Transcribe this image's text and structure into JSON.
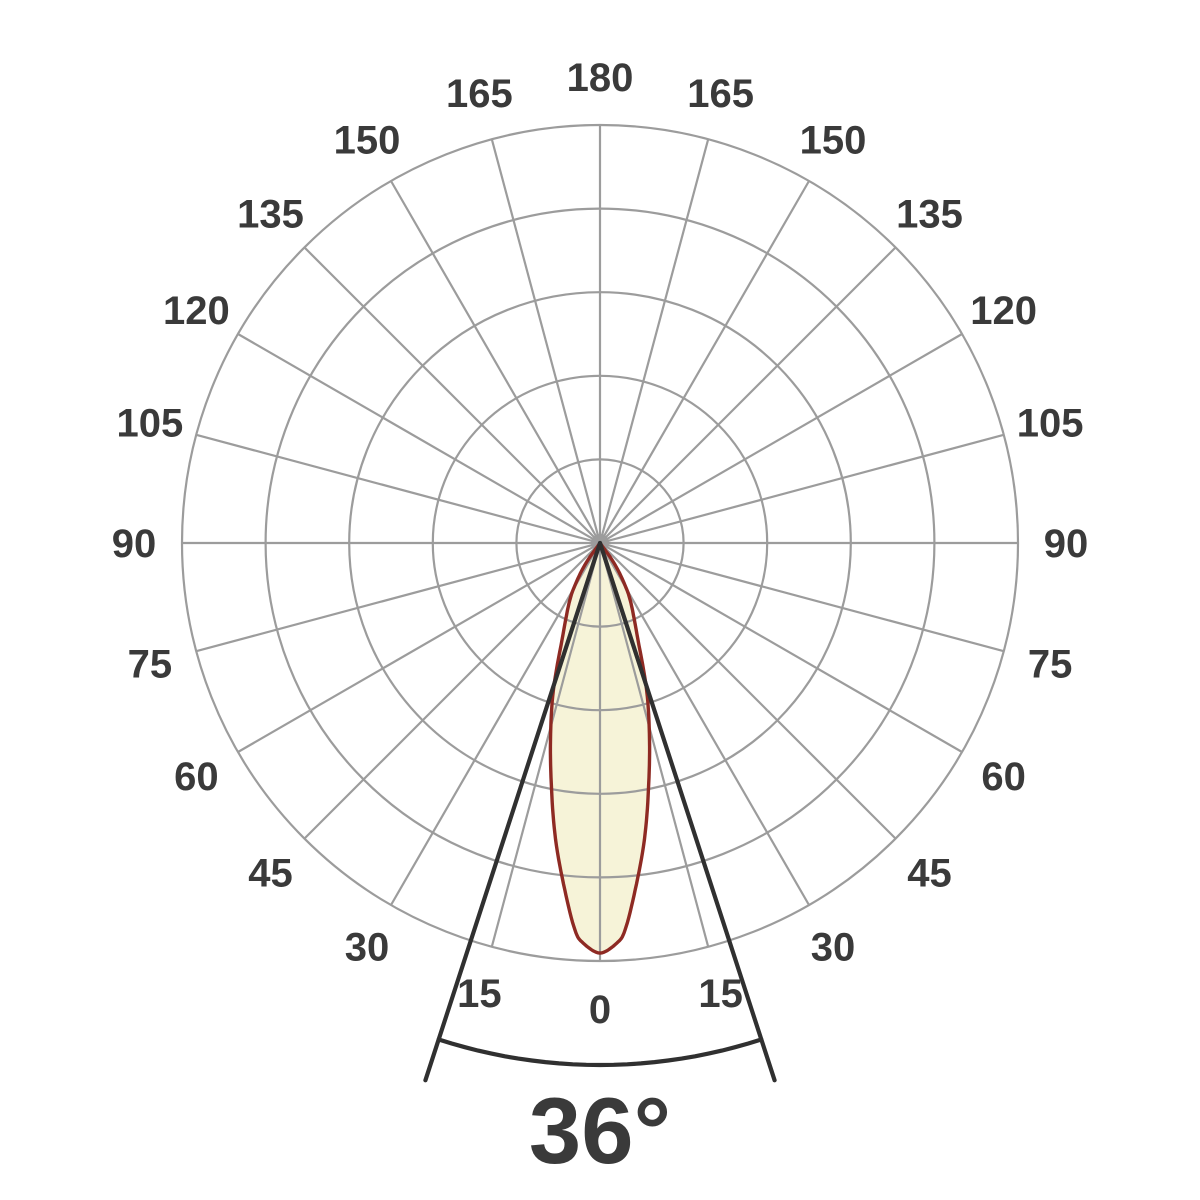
{
  "chart_data": {
    "type": "polar",
    "subtype": "luminous-intensity-distribution",
    "title": "36°",
    "beam_angle_deg": 36,
    "beam_angle_label": "36°",
    "angle_unit": "degrees",
    "angle_tick_step_deg": 15,
    "angle_tick_labels": [
      "0",
      "15",
      "30",
      "45",
      "60",
      "75",
      "90",
      "105",
      "120",
      "135",
      "150",
      "165",
      "180"
    ],
    "rings": 5,
    "grid_on": true,
    "legend": "none",
    "radial_range_normalized": [
      0,
      1
    ],
    "curve": {
      "name": "intensity-lobe",
      "symmetric": true,
      "theta_deg": [
        0,
        2.4,
        3.7,
        5.8,
        8.5,
        11.1,
        14.1,
        17.6,
        21.4,
        27.3,
        31.0,
        35.0,
        38.0
      ],
      "r_normalized": [
        0.981,
        0.958,
        0.928,
        0.834,
        0.718,
        0.602,
        0.486,
        0.369,
        0.249,
        0.161,
        0.112,
        0.058,
        0.0
      ]
    },
    "colors": {
      "background": "#ffffff",
      "grid": "#9c9c9c",
      "tick_label": "#3a3a3a",
      "lobe_fill": "#f6f3d8",
      "lobe_stroke": "#8e2a23",
      "beam_lines": "#303030",
      "title_text": "#3a3a3a"
    }
  }
}
